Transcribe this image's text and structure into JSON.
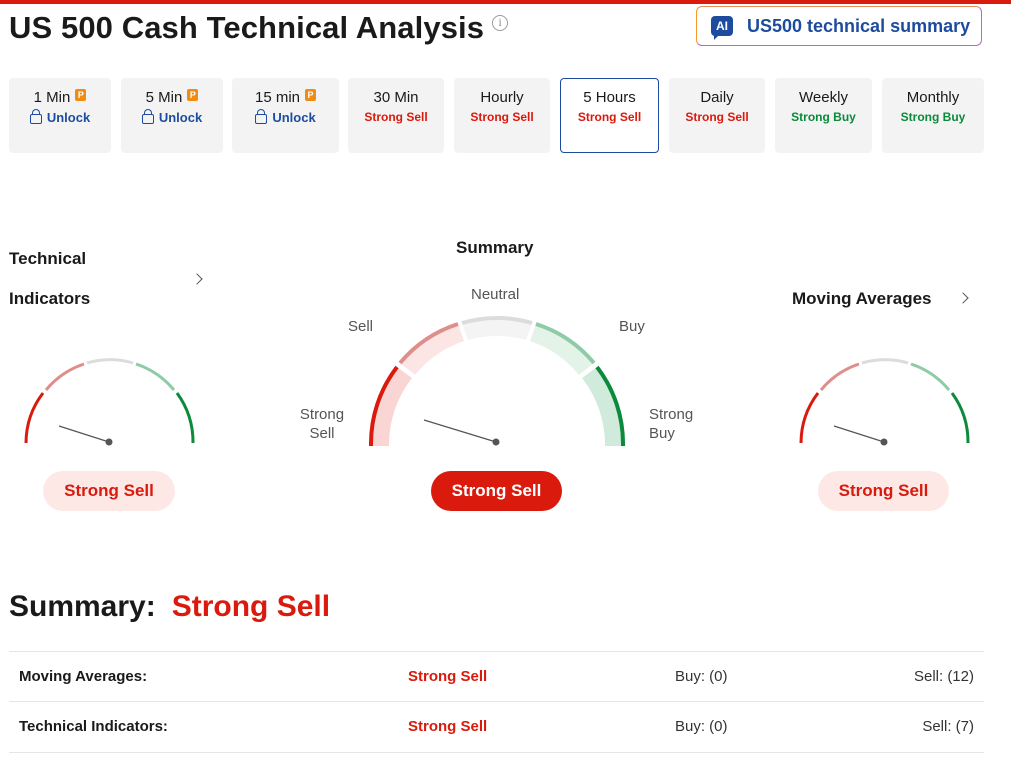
{
  "header": {
    "title": "US 500 Cash Technical Analysis",
    "info_icon": "info-icon",
    "ai_button": {
      "badge": "AI",
      "label": "US500 technical summary"
    }
  },
  "timeframes": [
    {
      "label": "1 Min",
      "pro": true,
      "status": "Unlock",
      "type": "locked"
    },
    {
      "label": "5 Min",
      "pro": true,
      "status": "Unlock",
      "type": "locked"
    },
    {
      "label": "15 min",
      "pro": true,
      "status": "Unlock",
      "type": "locked"
    },
    {
      "label": "30 Min",
      "status": "Strong Sell",
      "type": "sell"
    },
    {
      "label": "Hourly",
      "status": "Strong Sell",
      "type": "sell"
    },
    {
      "label": "5 Hours",
      "status": "Strong Sell",
      "type": "sell",
      "active": true
    },
    {
      "label": "Daily",
      "status": "Strong Sell",
      "type": "sell"
    },
    {
      "label": "Weekly",
      "status": "Strong Buy",
      "type": "buy"
    },
    {
      "label": "Monthly",
      "status": "Strong Buy",
      "type": "buy"
    }
  ],
  "pro_badge": "P",
  "gauges": {
    "technical": {
      "title_line1": "Technical",
      "title_line2": "Indicators",
      "result": "Strong Sell"
    },
    "summary": {
      "title": "Summary",
      "labels": {
        "strong_sell": "Strong Sell",
        "sell": "Sell",
        "neutral": "Neutral",
        "buy": "Buy",
        "strong_buy": "Strong Buy"
      },
      "result": "Strong Sell"
    },
    "moving": {
      "title": "Moving Averages",
      "result": "Strong Sell"
    }
  },
  "summary_section": {
    "heading": "Summary:",
    "value": "Strong Sell",
    "rows": [
      {
        "name": "Moving Averages:",
        "signal": "Strong Sell",
        "buy": "Buy: (0)",
        "sell": "Sell: (12)"
      },
      {
        "name": "Technical Indicators:",
        "signal": "Strong Sell",
        "buy": "Buy: (0)",
        "sell": "Sell: (7)"
      }
    ]
  },
  "colors": {
    "sell_red": "#d91a0d",
    "buy_green": "#0a8a3a",
    "brand_blue": "#1d4c9e",
    "sell_light": "#de8f8c",
    "buy_light": "#8fcba6",
    "neutral": "#dcdcdc"
  }
}
